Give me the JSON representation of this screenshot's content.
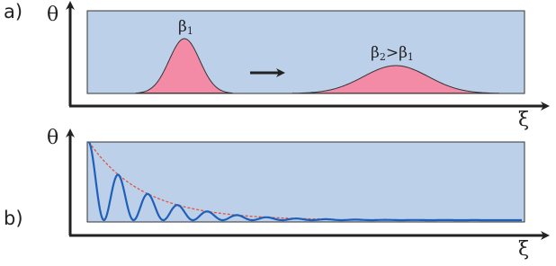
{
  "panel_a": {
    "label": "a)",
    "y_axis": "θ",
    "x_axis": "ξ",
    "peak_1": {
      "symbol": "β",
      "subscript": "1"
    },
    "peak_2": {
      "symbol_1": "β",
      "subscript_1": "2",
      "relation": ">",
      "symbol_2": "β",
      "subscript_2": "1"
    }
  },
  "panel_b": {
    "label": "b)",
    "y_axis": "θ",
    "x_axis": "ξ"
  }
}
